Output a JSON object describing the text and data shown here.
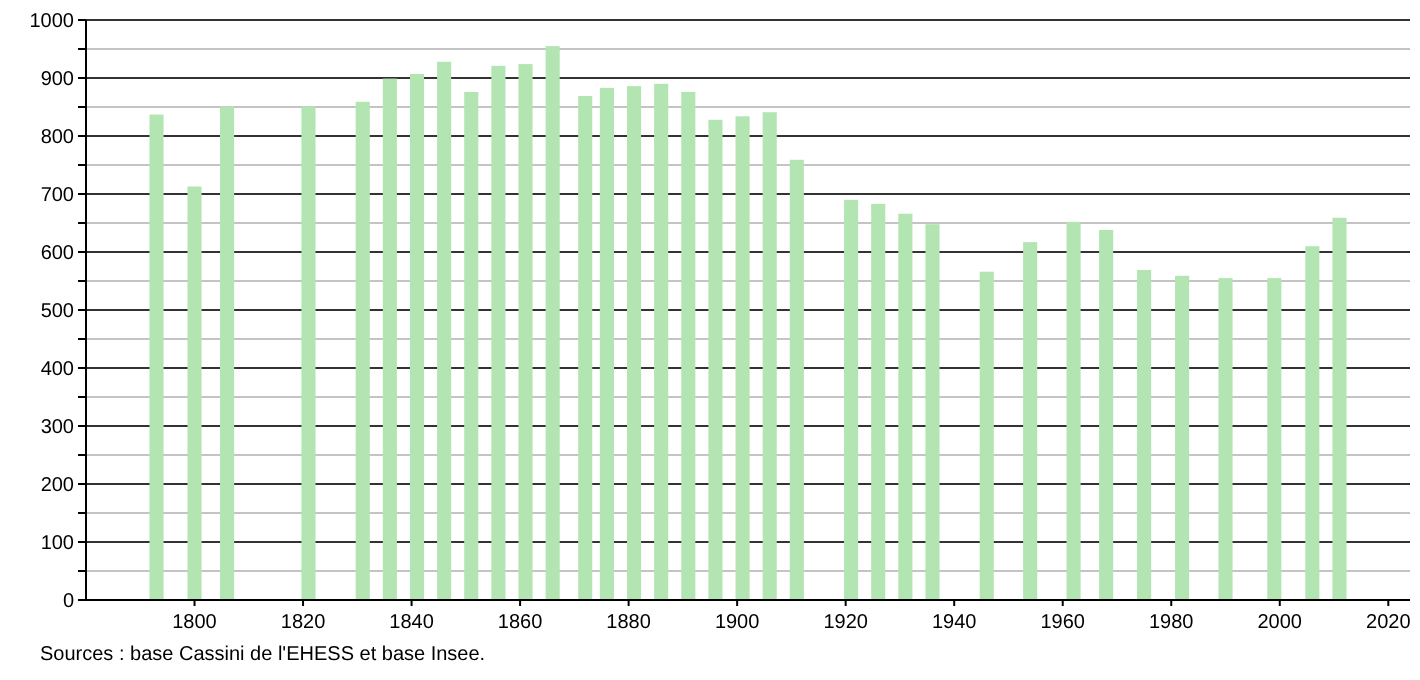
{
  "chart_data": {
    "type": "bar",
    "x": [
      1793,
      1800,
      1806,
      1821,
      1831,
      1836,
      1841,
      1846,
      1851,
      1856,
      1861,
      1866,
      1872,
      1876,
      1881,
      1886,
      1891,
      1896,
      1901,
      1906,
      1911,
      1921,
      1926,
      1931,
      1936,
      1946,
      1954,
      1962,
      1968,
      1975,
      1982,
      1990,
      1999,
      2006,
      2011
    ],
    "values": [
      837,
      713,
      851,
      851,
      859,
      899,
      907,
      928,
      876,
      921,
      924,
      955,
      869,
      883,
      886,
      890,
      876,
      828,
      834,
      841,
      759,
      690,
      683,
      666,
      648,
      566,
      617,
      652,
      638,
      569,
      559,
      555,
      555,
      610,
      659
    ],
    "color": "#b3e5b3",
    "xlim": [
      1780,
      2024
    ],
    "xticks": [
      1800,
      1820,
      1840,
      1860,
      1880,
      1900,
      1920,
      1940,
      1960,
      1980,
      2000,
      2020
    ],
    "ylim": [
      0,
      1000
    ],
    "yticks": [
      0,
      {
        "value": 50,
        "label": null
      },
      100,
      {
        "value": 150,
        "label": null
      },
      200,
      {
        "value": 250,
        "label": null
      },
      300,
      {
        "value": 350,
        "label": null
      },
      400,
      {
        "value": 450,
        "label": null
      },
      500,
      {
        "value": 550,
        "label": null
      },
      600,
      {
        "value": 650,
        "label": null
      },
      700,
      {
        "value": 750,
        "label": null
      },
      800,
      {
        "value": 850,
        "label": null
      },
      900,
      {
        "value": 950,
        "label": null
      },
      1000
    ],
    "grid": true,
    "annotations": [
      "Sources : base Cassini de l'EHESS et base Insee."
    ]
  }
}
